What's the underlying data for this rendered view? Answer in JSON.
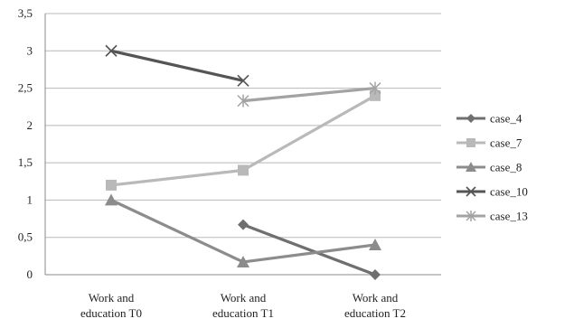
{
  "chart_data": {
    "type": "line",
    "categories": [
      [
        "Work and",
        "education  T0"
      ],
      [
        "Work and",
        "education  T1"
      ],
      [
        "Work and",
        "education  T2"
      ]
    ],
    "ylim": [
      0,
      3.5
    ],
    "yticks": [
      "0",
      "0,5",
      "1",
      "1,5",
      "2",
      "2,5",
      "3",
      "3,5"
    ],
    "grid": true,
    "legend_position": "right",
    "series": [
      {
        "name": "case_4",
        "color": "#6f6f6f",
        "marker": "diamond",
        "values": [
          null,
          0.67,
          0.0
        ]
      },
      {
        "name": "case_7",
        "color": "#b9b9b9",
        "marker": "square",
        "values": [
          1.2,
          1.4,
          2.4
        ]
      },
      {
        "name": "case_8",
        "color": "#8c8c8c",
        "marker": "triangle",
        "values": [
          1.0,
          0.17,
          0.4
        ]
      },
      {
        "name": "case_10",
        "color": "#555555",
        "marker": "x",
        "values": [
          3.0,
          2.6,
          null
        ]
      },
      {
        "name": "case_13",
        "color": "#a3a3a3",
        "marker": "star",
        "values": [
          null,
          2.33,
          2.5
        ]
      }
    ]
  }
}
